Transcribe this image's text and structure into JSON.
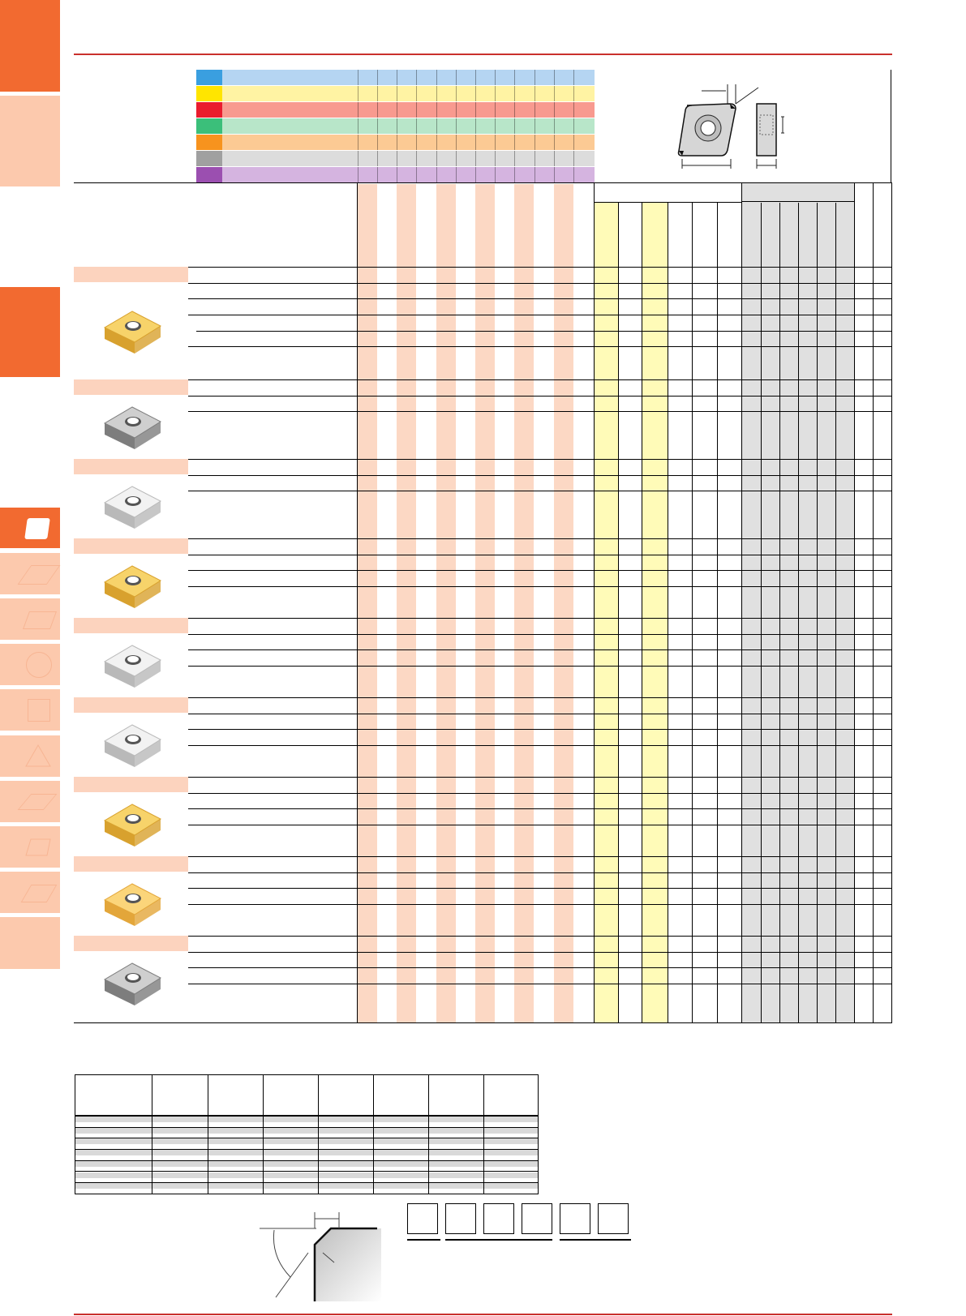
{
  "page": {
    "colors": {
      "accent": "#f26a30",
      "accent_light": "#fcc9ad",
      "rule": "#c9302c",
      "stripe_peach": "#fcd8c4",
      "stripe_yellow": "#fffbb8",
      "stripe_grey": "#e0e0e0"
    }
  },
  "side_tabs": [
    {
      "name": "tab-top",
      "style": "dark"
    },
    {
      "name": "tab-2",
      "style": "light"
    },
    {
      "name": "tab-3",
      "style": "dark"
    },
    {
      "name": "tab-rhombus-80",
      "style": "dark",
      "icon": "rhombus-icon"
    },
    {
      "name": "tab-rhombus-55",
      "style": "light",
      "icon": "rhombus-55-icon"
    },
    {
      "name": "tab-rhombus-35",
      "style": "light",
      "icon": "rhombus-35-icon"
    },
    {
      "name": "tab-round",
      "style": "light",
      "icon": "circle-icon"
    },
    {
      "name": "tab-square",
      "style": "light",
      "icon": "square-icon"
    },
    {
      "name": "tab-triangle",
      "style": "light",
      "icon": "triangle-icon"
    },
    {
      "name": "tab-parallelogram",
      "style": "light",
      "icon": "parallelogram-icon"
    },
    {
      "name": "tab-trapezoid",
      "style": "light",
      "icon": "trapezoid-icon"
    },
    {
      "name": "tab-rhombus-alt",
      "style": "light",
      "icon": "rhombus-alt-icon"
    },
    {
      "name": "tab-bottom",
      "style": "light"
    }
  ],
  "legend": [
    {
      "color": "#3a9fe0",
      "band": "#b5d5f2"
    },
    {
      "color": "#ffe500",
      "band": "#fff3a3"
    },
    {
      "color": "#ea1c2d",
      "band": "#f89a8f"
    },
    {
      "color": "#3bbf7a",
      "band": "#b8e6c9"
    },
    {
      "color": "#f7931e",
      "band": "#fcca94"
    },
    {
      "color": "#a0a0a0",
      "band": "#dcdcdc"
    },
    {
      "color": "#9b4fb0",
      "band": "#d5b4e0"
    }
  ],
  "groups": [
    {
      "insert": "gold",
      "rows": 6
    },
    {
      "insert": "dark",
      "rows": 3
    },
    {
      "insert": "silver",
      "rows": 3
    },
    {
      "insert": "gold",
      "rows": 4
    },
    {
      "insert": "silver",
      "rows": 4
    },
    {
      "insert": "silver",
      "rows": 4
    },
    {
      "insert": "gold",
      "rows": 4
    },
    {
      "insert": "gold-bright",
      "rows": 4
    },
    {
      "insert": "dark",
      "rows": 4
    }
  ],
  "bottom_table": {
    "columns": 8,
    "rows": 7
  },
  "code_boxes": 6
}
